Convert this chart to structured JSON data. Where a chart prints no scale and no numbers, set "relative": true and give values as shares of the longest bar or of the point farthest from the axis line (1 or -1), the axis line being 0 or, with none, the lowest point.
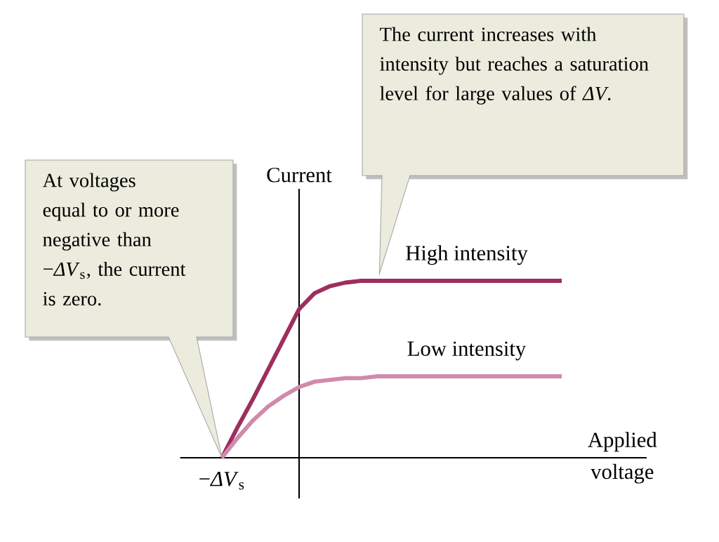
{
  "chart_data": {
    "type": "line",
    "relative": true,
    "xlabel": "Applied voltage",
    "ylabel": "Current",
    "categories": [
      null,
      null,
      null,
      null,
      null,
      null,
      null,
      null,
      null,
      null,
      null,
      null,
      null,
      null,
      null,
      null,
      null,
      null,
      null,
      null,
      null,
      null,
      null
    ],
    "series": [
      {
        "name": "High intensity",
        "color": "#9c2f5e",
        "values": [
          0,
          0.17,
          0.33,
          0.5,
          0.67,
          0.84,
          0.93,
          0.97,
          0.99,
          1,
          1,
          1,
          1,
          1,
          1,
          1,
          1,
          1,
          1,
          1,
          1,
          1,
          1
        ]
      },
      {
        "name": "Low intensity",
        "color": "#d08aab",
        "values": [
          0,
          0.11,
          0.21,
          0.29,
          0.35,
          0.4,
          0.43,
          0.44,
          0.45,
          0.45,
          0.46,
          0.46,
          0.46,
          0.46,
          0.46,
          0.46,
          0.46,
          0.46,
          0.46,
          0.46,
          0.46,
          0.46,
          0.46
        ]
      }
    ],
    "annotations": [
      "−*ΔV*$_{s}$",
      "At voltages equal to or more negative than −*ΔV*$_{s}$, the current is zero.",
      "The current increases with intensity but reaches a saturation level for large values of *ΔV*."
    ],
    "legend": false,
    "marker": "none",
    "line_style": "solid"
  }
}
